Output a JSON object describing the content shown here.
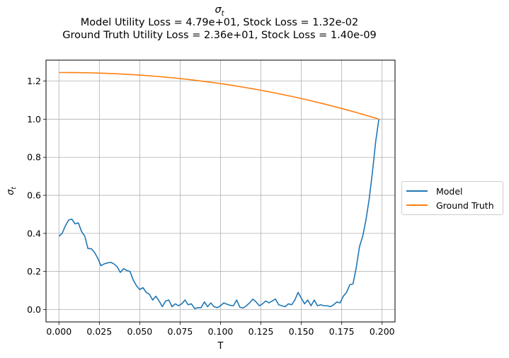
{
  "chart_data": {
    "type": "line",
    "title_symbol": "σ",
    "title_symbol_sub": "t",
    "title_line1": "Model Utility Loss = 4.79e+01, Stock Loss = 1.32e-02",
    "title_line2": "Ground Truth Utility Loss = 2.36e+01, Stock Loss = 1.40e-09",
    "xlabel": "T",
    "ylabel_symbol": "σ",
    "ylabel_sub": "t",
    "xlim": [
      -0.008,
      0.208
    ],
    "ylim": [
      -0.065,
      1.31
    ],
    "xticks": [
      0.0,
      0.025,
      0.05,
      0.075,
      0.1,
      0.125,
      0.15,
      0.175,
      0.2
    ],
    "xtick_labels": [
      "0.000",
      "0.025",
      "0.050",
      "0.075",
      "0.100",
      "0.125",
      "0.150",
      "0.175",
      "0.200"
    ],
    "yticks": [
      0.0,
      0.2,
      0.4,
      0.6,
      0.8,
      1.0,
      1.2
    ],
    "ytick_labels": [
      "0.0",
      "0.2",
      "0.4",
      "0.6",
      "0.8",
      "1.0",
      "1.2"
    ],
    "grid": true,
    "legend_position": "center-right-outside",
    "series": [
      {
        "name": "Model",
        "color": "#1f77b4",
        "x": [
          0.0,
          0.002,
          0.004,
          0.006,
          0.008,
          0.01,
          0.012,
          0.014,
          0.016,
          0.018,
          0.02,
          0.022,
          0.024,
          0.026,
          0.028,
          0.03,
          0.032,
          0.034,
          0.036,
          0.038,
          0.04,
          0.042,
          0.044,
          0.046,
          0.048,
          0.05,
          0.052,
          0.054,
          0.056,
          0.058,
          0.06,
          0.062,
          0.064,
          0.066,
          0.068,
          0.07,
          0.072,
          0.074,
          0.076,
          0.078,
          0.08,
          0.082,
          0.084,
          0.086,
          0.088,
          0.09,
          0.092,
          0.094,
          0.096,
          0.098,
          0.1,
          0.102,
          0.104,
          0.106,
          0.108,
          0.11,
          0.112,
          0.114,
          0.116,
          0.118,
          0.12,
          0.122,
          0.124,
          0.126,
          0.128,
          0.13,
          0.132,
          0.134,
          0.136,
          0.138,
          0.14,
          0.142,
          0.144,
          0.146,
          0.148,
          0.15,
          0.152,
          0.154,
          0.156,
          0.158,
          0.16,
          0.162,
          0.164,
          0.166,
          0.168,
          0.17,
          0.172,
          0.174,
          0.176,
          0.178,
          0.18,
          0.182,
          0.184,
          0.186,
          0.188,
          0.19,
          0.192,
          0.194,
          0.196,
          0.198
        ],
        "y": [
          0.385,
          0.4,
          0.44,
          0.47,
          0.475,
          0.45,
          0.455,
          0.41,
          0.385,
          0.32,
          0.32,
          0.3,
          0.27,
          0.23,
          0.24,
          0.245,
          0.248,
          0.24,
          0.225,
          0.195,
          0.215,
          0.205,
          0.2,
          0.155,
          0.125,
          0.105,
          0.115,
          0.09,
          0.08,
          0.05,
          0.07,
          0.045,
          0.015,
          0.045,
          0.05,
          0.015,
          0.03,
          0.02,
          0.03,
          0.05,
          0.025,
          0.03,
          0.005,
          0.01,
          0.01,
          0.04,
          0.015,
          0.035,
          0.015,
          0.01,
          0.02,
          0.035,
          0.028,
          0.022,
          0.02,
          0.05,
          0.012,
          0.008,
          0.02,
          0.035,
          0.055,
          0.04,
          0.02,
          0.03,
          0.045,
          0.035,
          0.045,
          0.055,
          0.025,
          0.02,
          0.015,
          0.03,
          0.025,
          0.05,
          0.09,
          0.06,
          0.03,
          0.05,
          0.02,
          0.05,
          0.02,
          0.025,
          0.02,
          0.02,
          0.015,
          0.025,
          0.04,
          0.035,
          0.07,
          0.09,
          0.13,
          0.135,
          0.22,
          0.33,
          0.385,
          0.47,
          0.58,
          0.72,
          0.88,
          1.0
        ]
      },
      {
        "name": "Ground Truth",
        "color": "#ff7f0e",
        "x": [
          0.0,
          0.01,
          0.02,
          0.03,
          0.04,
          0.05,
          0.06,
          0.07,
          0.08,
          0.09,
          0.1,
          0.11,
          0.12,
          0.13,
          0.14,
          0.15,
          0.16,
          0.17,
          0.18,
          0.19,
          0.198
        ],
        "y": [
          1.245,
          1.244,
          1.243,
          1.241,
          1.238,
          1.234,
          1.228,
          1.22,
          1.21,
          1.198,
          1.184,
          1.167,
          1.148,
          1.126,
          1.102,
          1.076,
          1.048,
          1.018,
          0.987,
          0.955,
          0.93
        ]
      }
    ]
  }
}
